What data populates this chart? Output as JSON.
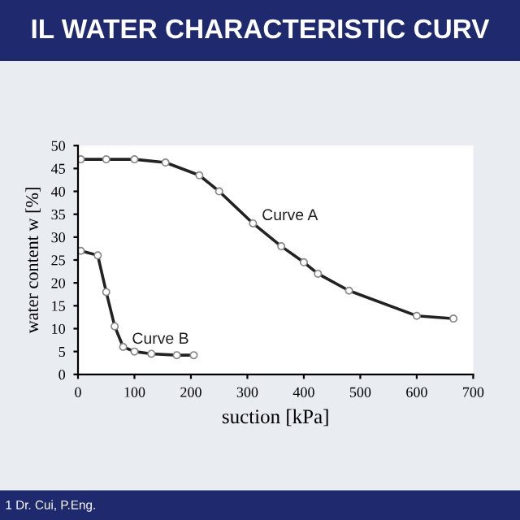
{
  "chart_data": {
    "type": "line",
    "title": "IL WATER CHARACTERISTIC CURV",
    "xlabel": "suction [kPa]",
    "ylabel": "water content w [%]",
    "annotations": [
      "1 Dr. Cui, P.Eng."
    ],
    "series": [
      {
        "name": "Curve A",
        "color": "#222222",
        "x": [
          5,
          50,
          100,
          155,
          215,
          250,
          310,
          360,
          400,
          425,
          480,
          600,
          665
        ],
        "values": [
          47,
          47,
          47,
          46.3,
          43.5,
          40,
          33,
          28,
          24.5,
          22,
          18.3,
          12.8,
          12.2
        ]
      },
      {
        "name": "Curve B",
        "color": "#222222",
        "x": [
          5,
          35,
          50,
          65,
          80,
          100,
          130,
          175,
          205
        ],
        "values": [
          27,
          26,
          18,
          10.5,
          6,
          5,
          4.5,
          4.2,
          4.2
        ]
      }
    ],
    "xlim": [
      0,
      700
    ],
    "xticks": [
      0,
      100,
      200,
      300,
      400,
      500,
      600,
      700
    ],
    "ylim": [
      0,
      50
    ],
    "yticks": [
      0,
      5,
      10,
      15,
      20,
      25,
      30,
      35,
      40,
      45,
      50
    ],
    "grid": false,
    "legend": false,
    "marker": "circle",
    "line_style": "solid"
  }
}
